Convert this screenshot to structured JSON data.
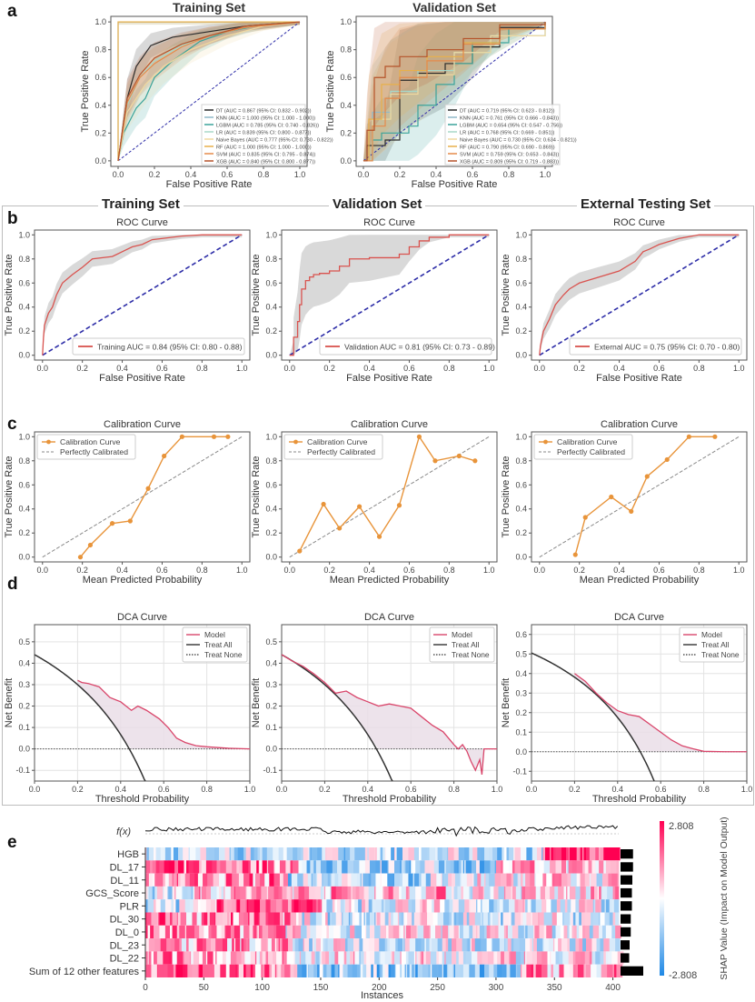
{
  "panel_labels": {
    "a": "a",
    "b": "b",
    "c": "c",
    "d": "d",
    "e": "e"
  },
  "group_titles": [
    "Training Set",
    "Validation Set",
    "External Testing Set"
  ],
  "colors": {
    "DT": "#2b2b2b",
    "KNN": "#8fb9c9",
    "LGBM": "#3aa39a",
    "LR": "#a8d8c8",
    "Naive Bayes": "#f0d9a0",
    "RF": "#e8b04a",
    "SVM": "#e58a4a",
    "XGB": "#b5532a",
    "roc_line": "#d9534f",
    "chance": "#2e2ea8",
    "ci_band": "#cfcfcf",
    "calib": "#e8943a",
    "perfect": "#8a8a8a",
    "dca_model": "#d9466b",
    "dca_fill": "#e9dce6",
    "treat_all": "#333333",
    "shap_pos": "#ff0052",
    "shap_neg": "#1e88e5"
  },
  "chart_data": [
    {
      "id": "a-train",
      "type": "line",
      "title": "Training Set",
      "xlabel": "False Positive Rate",
      "ylabel": "True Positive Rate",
      "xlim": [
        0,
        1
      ],
      "ylim": [
        0,
        1
      ],
      "xticks": [
        "0.0",
        "0.2",
        "0.4",
        "0.6",
        "0.8",
        "1.0"
      ],
      "yticks": [
        "0.0",
        "0.2",
        "0.4",
        "0.6",
        "0.8",
        "1.0"
      ],
      "legend_position": "lower-right",
      "series": [
        {
          "name": "DT",
          "label": "DT (AUC = 0.867 (95% CI: 0.832 - 0.902))",
          "x": [
            0,
            0.05,
            0.1,
            0.18,
            0.3,
            0.5,
            0.7,
            1
          ],
          "y": [
            0,
            0.45,
            0.68,
            0.83,
            0.89,
            0.93,
            0.97,
            1
          ]
        },
        {
          "name": "KNN",
          "label": "KNN (AUC = 1.000 (95% CI: 1.000 - 1.000))",
          "x": [
            0,
            0,
            1
          ],
          "y": [
            0,
            1,
            1
          ]
        },
        {
          "name": "LGBM",
          "label": "LGBM (AUC = 0.785 (95% CI: 0.740 - 0.826))",
          "x": [
            0,
            0.03,
            0.1,
            0.15,
            0.2,
            0.3,
            0.45,
            0.6,
            0.8,
            1
          ],
          "y": [
            0,
            0.2,
            0.38,
            0.45,
            0.6,
            0.72,
            0.86,
            0.93,
            0.98,
            1
          ]
        },
        {
          "name": "LR",
          "label": "LR (AUC = 0.839 (95% CI: 0.800 - 0.877))",
          "x": [
            0,
            0.05,
            0.12,
            0.2,
            0.35,
            0.5,
            0.7,
            1
          ],
          "y": [
            0,
            0.4,
            0.6,
            0.72,
            0.83,
            0.9,
            0.96,
            1
          ]
        },
        {
          "name": "Naive Bayes",
          "label": "Naive Bayes (AUC = 0.777 (95% CI: 0.730 - 0.822))",
          "x": [
            0,
            0.05,
            0.15,
            0.25,
            0.4,
            0.6,
            0.8,
            1
          ],
          "y": [
            0,
            0.35,
            0.55,
            0.68,
            0.8,
            0.9,
            0.97,
            1
          ]
        },
        {
          "name": "RF",
          "label": "RF (AUC = 1.000 (95% CI: 1.000 - 1.000))",
          "x": [
            0,
            0,
            1
          ],
          "y": [
            0,
            1,
            1
          ]
        },
        {
          "name": "SVM",
          "label": "SVM (AUC = 0.835 (95% CI: 0.795 - 0.874))",
          "x": [
            0,
            0.05,
            0.12,
            0.2,
            0.35,
            0.5,
            0.7,
            1
          ],
          "y": [
            0,
            0.42,
            0.6,
            0.7,
            0.82,
            0.9,
            0.96,
            1
          ]
        },
        {
          "name": "XGB",
          "label": "XGB (AUC = 0.840 (95% CI: 0.800 - 0.877))",
          "x": [
            0,
            0.05,
            0.12,
            0.2,
            0.35,
            0.5,
            0.7,
            1
          ],
          "y": [
            0,
            0.45,
            0.62,
            0.74,
            0.84,
            0.9,
            0.97,
            1
          ]
        }
      ]
    },
    {
      "id": "a-val",
      "type": "line",
      "title": "Validation Set",
      "xlabel": "False Positive Rate",
      "ylabel": "True Positive Rate",
      "xlim": [
        0,
        1
      ],
      "ylim": [
        0,
        1
      ],
      "xticks": [
        "0.0",
        "0.2",
        "0.4",
        "0.6",
        "0.8",
        "1.0"
      ],
      "yticks": [
        "0.0",
        "0.2",
        "0.4",
        "0.6",
        "0.8",
        "1.0"
      ],
      "legend_position": "lower-right",
      "series": [
        {
          "name": "DT",
          "label": "DT (AUC = 0.719 (95% CI: 0.623 - 0.812))",
          "x": [
            0,
            0.02,
            0.12,
            0.2,
            0.3,
            0.45,
            0.6,
            0.75,
            1
          ],
          "y": [
            0,
            0.11,
            0.15,
            0.58,
            0.63,
            0.7,
            0.82,
            0.96,
            1
          ]
        },
        {
          "name": "KNN",
          "label": "KNN (AUC = 0.761 (95% CI: 0.666 - 0.843))",
          "x": [
            0,
            0.05,
            0.15,
            0.3,
            0.5,
            0.7,
            1
          ],
          "y": [
            0,
            0.35,
            0.5,
            0.65,
            0.78,
            0.9,
            1
          ]
        },
        {
          "name": "LGBM",
          "label": "LGBM (AUC = 0.654 (95% CI: 0.547 - 0.756))",
          "x": [
            0,
            0.05,
            0.1,
            0.25,
            0.3,
            0.4,
            0.5,
            0.6,
            0.8,
            1
          ],
          "y": [
            0,
            0.15,
            0.2,
            0.25,
            0.4,
            0.55,
            0.7,
            0.85,
            0.95,
            1
          ]
        },
        {
          "name": "LR",
          "label": "LR (AUC = 0.768 (95% CI: 0.669 - 0.851))",
          "x": [
            0,
            0.05,
            0.15,
            0.3,
            0.5,
            0.7,
            1
          ],
          "y": [
            0,
            0.3,
            0.5,
            0.65,
            0.78,
            0.9,
            1
          ]
        },
        {
          "name": "Naive Bayes",
          "label": "Naive Bayes (AUC = 0.730 (95% CI: 0.634 - 0.821))",
          "x": [
            0,
            0.05,
            0.15,
            0.3,
            0.5,
            0.7,
            1
          ],
          "y": [
            0,
            0.3,
            0.48,
            0.62,
            0.78,
            0.9,
            1
          ]
        },
        {
          "name": "RF",
          "label": "RF (AUC = 0.790 (95% CI: 0.690 - 0.869))",
          "x": [
            0,
            0.03,
            0.1,
            0.2,
            0.35,
            0.55,
            0.75,
            1
          ],
          "y": [
            0,
            0.3,
            0.55,
            0.65,
            0.75,
            0.85,
            0.95,
            1
          ]
        },
        {
          "name": "SVM",
          "label": "SVM (AUC = 0.759 (95% CI: 0.653 - 0.843))",
          "x": [
            0,
            0.05,
            0.12,
            0.2,
            0.35,
            0.55,
            0.75,
            1
          ],
          "y": [
            0,
            0.25,
            0.45,
            0.6,
            0.72,
            0.84,
            0.95,
            1
          ]
        },
        {
          "name": "XGB",
          "label": "XGB (AUC = 0.809 (95% CI: 0.719 - 0.883))",
          "x": [
            0,
            0.02,
            0.06,
            0.12,
            0.2,
            0.35,
            0.55,
            0.75,
            1
          ],
          "y": [
            0,
            0.22,
            0.6,
            0.68,
            0.75,
            0.8,
            0.88,
            0.98,
            1
          ]
        }
      ]
    },
    {
      "id": "b-train",
      "type": "line",
      "title": "ROC Curve",
      "xlabel": "False Positive Rate",
      "ylabel": "True Positive Rate",
      "xlim": [
        0,
        1
      ],
      "ylim": [
        0,
        1
      ],
      "xticks": [
        "0.0",
        "0.2",
        "0.4",
        "0.6",
        "0.8",
        "1.0"
      ],
      "yticks": [
        "0.0",
        "0.2",
        "0.4",
        "0.6",
        "0.8",
        "1.0"
      ],
      "legend": "Training AUC = 0.84 (95% CI: 0.80 - 0.88)",
      "legend_position": "lower-right",
      "x": [
        0,
        0.005,
        0.01,
        0.03,
        0.05,
        0.07,
        0.1,
        0.15,
        0.2,
        0.25,
        0.35,
        0.4,
        0.45,
        0.5,
        0.55,
        0.7,
        0.8,
        1
      ],
      "y": [
        0,
        0.15,
        0.25,
        0.35,
        0.4,
        0.5,
        0.6,
        0.67,
        0.73,
        0.8,
        0.82,
        0.86,
        0.9,
        0.92,
        0.96,
        0.99,
        1,
        1
      ]
    },
    {
      "id": "b-val",
      "type": "line",
      "title": "ROC Curve",
      "xlabel": "False Positive Rate",
      "ylabel": "True Positive Rate",
      "xlim": [
        0,
        1
      ],
      "ylim": [
        0,
        1
      ],
      "xticks": [
        "0.0",
        "0.2",
        "0.4",
        "0.6",
        "0.8",
        "1.0"
      ],
      "yticks": [
        "0.0",
        "0.2",
        "0.4",
        "0.6",
        "0.8",
        "1.0"
      ],
      "legend": "Validation AUC = 0.81 (95% CI: 0.73 - 0.89)",
      "legend_position": "lower-right",
      "x": [
        0,
        0.02,
        0.02,
        0.04,
        0.05,
        0.06,
        0.08,
        0.1,
        0.12,
        0.15,
        0.2,
        0.25,
        0.3,
        0.4,
        0.55,
        0.6,
        0.65,
        0.7,
        0.8,
        1
      ],
      "y": [
        0,
        0.05,
        0.15,
        0.28,
        0.42,
        0.55,
        0.62,
        0.65,
        0.67,
        0.68,
        0.7,
        0.74,
        0.8,
        0.81,
        0.84,
        0.9,
        0.95,
        0.98,
        1,
        1
      ]
    },
    {
      "id": "b-ext",
      "type": "line",
      "title": "ROC Curve",
      "xlabel": "False Positive Rate",
      "ylabel": "True Positive Rate",
      "xlim": [
        0,
        1
      ],
      "ylim": [
        0,
        1
      ],
      "xticks": [
        "0.0",
        "0.2",
        "0.4",
        "0.6",
        "0.8",
        "1.0"
      ],
      "yticks": [
        "0.0",
        "0.2",
        "0.4",
        "0.6",
        "0.8",
        "1.0"
      ],
      "legend": "External AUC = 0.75 (95% CI: 0.70 - 0.80)",
      "legend_position": "lower-right",
      "x": [
        0,
        0.005,
        0.02,
        0.05,
        0.08,
        0.12,
        0.15,
        0.2,
        0.3,
        0.4,
        0.48,
        0.52,
        0.55,
        0.6,
        0.7,
        0.8,
        1
      ],
      "y": [
        0,
        0.08,
        0.2,
        0.3,
        0.42,
        0.5,
        0.55,
        0.6,
        0.65,
        0.7,
        0.78,
        0.86,
        0.88,
        0.92,
        0.97,
        1,
        1
      ]
    },
    {
      "id": "c-train",
      "type": "line",
      "title": "Calibration Curve",
      "xlabel": "Mean Predicted Probability",
      "ylabel": "True Positive Rate",
      "xlim": [
        0,
        1
      ],
      "ylim": [
        0,
        1
      ],
      "xticks": [
        "0.0",
        "0.2",
        "0.4",
        "0.6",
        "0.8",
        "1.0"
      ],
      "yticks": [
        "0.0",
        "0.2",
        "0.4",
        "0.6",
        "0.8",
        "1.0"
      ],
      "legend": [
        "Calibration Curve",
        "Perfectly Calibrated"
      ],
      "legend_position": "upper-left",
      "x": [
        0.19,
        0.24,
        0.35,
        0.44,
        0.53,
        0.61,
        0.7,
        0.86,
        0.93
      ],
      "y": [
        0.0,
        0.1,
        0.28,
        0.3,
        0.57,
        0.84,
        1.0,
        1.0,
        1.0
      ]
    },
    {
      "id": "c-val",
      "type": "line",
      "title": "Calibration Curve",
      "xlabel": "Mean Predicted Probability",
      "ylabel": "True Positive Rate",
      "xlim": [
        0,
        1
      ],
      "ylim": [
        0,
        1
      ],
      "xticks": [
        "0.0",
        "0.2",
        "0.4",
        "0.6",
        "0.8",
        "1.0"
      ],
      "yticks": [
        "0.0",
        "0.2",
        "0.4",
        "0.6",
        "0.8",
        "1.0"
      ],
      "legend": [
        "Calibration Curve",
        "Perfectly Calibrated"
      ],
      "legend_position": "upper-left",
      "x": [
        0.05,
        0.17,
        0.25,
        0.35,
        0.45,
        0.55,
        0.65,
        0.73,
        0.85,
        0.93
      ],
      "y": [
        0.05,
        0.44,
        0.24,
        0.42,
        0.17,
        0.43,
        1.0,
        0.8,
        0.84,
        0.8
      ]
    },
    {
      "id": "c-ext",
      "type": "line",
      "title": "Calibration Curve",
      "xlabel": "Mean Predicted Probability",
      "ylabel": "True Positive Rate",
      "xlim": [
        0,
        1
      ],
      "ylim": [
        0,
        1
      ],
      "xticks": [
        "0.0",
        "0.2",
        "0.4",
        "0.6",
        "0.8",
        "1.0"
      ],
      "yticks": [
        "0.0",
        "0.2",
        "0.4",
        "0.6",
        "0.8",
        "1.0"
      ],
      "legend": [
        "Calibration Curve",
        "Perfectly Calibrated"
      ],
      "legend_position": "upper-left",
      "x": [
        0.18,
        0.23,
        0.36,
        0.46,
        0.54,
        0.64,
        0.75,
        0.88
      ],
      "y": [
        0.02,
        0.33,
        0.5,
        0.38,
        0.67,
        0.81,
        1.0,
        1.0
      ]
    },
    {
      "id": "d-train",
      "type": "line",
      "title": "DCA Curve",
      "xlabel": "Threshold Probability",
      "ylabel": "Net Benefit",
      "xlim": [
        0,
        1
      ],
      "ylim": [
        -0.15,
        0.58
      ],
      "xticks": [
        "0.0",
        "0.2",
        "0.4",
        "0.6",
        "0.8",
        "1.0"
      ],
      "yticks": [
        "-0.1",
        "0.0",
        "0.1",
        "0.2",
        "0.3",
        "0.4",
        "0.5"
      ],
      "legend": [
        "Model",
        "Treat All",
        "Treat None"
      ],
      "legend_position": "upper-right",
      "prevalence": 0.44,
      "model_x": [
        0.2,
        0.22,
        0.25,
        0.3,
        0.35,
        0.4,
        0.45,
        0.48,
        0.52,
        0.55,
        0.58,
        0.62,
        0.66,
        0.7,
        0.75,
        0.8,
        0.9,
        1.0
      ],
      "model_y": [
        0.32,
        0.31,
        0.305,
        0.29,
        0.24,
        0.22,
        0.18,
        0.2,
        0.18,
        0.16,
        0.14,
        0.1,
        0.05,
        0.03,
        0.015,
        0.01,
        0.003,
        0
      ]
    },
    {
      "id": "d-val",
      "type": "line",
      "title": "DCA Curve",
      "xlabel": "Threshold Probability",
      "ylabel": "Net Benefit",
      "xlim": [
        0,
        1
      ],
      "ylim": [
        -0.15,
        0.58
      ],
      "xticks": [
        "0.0",
        "0.2",
        "0.4",
        "0.6",
        "0.8",
        "1.0"
      ],
      "yticks": [
        "-0.1",
        "0.0",
        "0.1",
        "0.2",
        "0.3",
        "0.4",
        "0.5"
      ],
      "legend": [
        "Model",
        "Treat All",
        "Treat None"
      ],
      "legend_position": "upper-right",
      "prevalence": 0.44,
      "model_x": [
        0.0,
        0.05,
        0.1,
        0.15,
        0.2,
        0.25,
        0.3,
        0.35,
        0.4,
        0.45,
        0.5,
        0.55,
        0.6,
        0.65,
        0.7,
        0.75,
        0.8,
        0.82,
        0.84,
        0.86,
        0.88,
        0.9,
        0.92,
        0.93,
        0.94,
        1.0
      ],
      "model_y": [
        0.44,
        0.41,
        0.385,
        0.35,
        0.31,
        0.26,
        0.27,
        0.24,
        0.22,
        0.2,
        0.21,
        0.2,
        0.19,
        0.15,
        0.11,
        0.08,
        0.02,
        0.0,
        0.02,
        -0.01,
        -0.06,
        -0.1,
        -0.05,
        -0.12,
        0.0,
        0.0
      ]
    },
    {
      "id": "d-ext",
      "type": "line",
      "title": "DCA Curve",
      "xlabel": "Threshold Probability",
      "ylabel": "Net Benefit",
      "xlim": [
        0,
        1
      ],
      "ylim": [
        -0.15,
        0.65
      ],
      "xticks": [
        "0.0",
        "0.2",
        "0.4",
        "0.6",
        "0.8",
        "1.0"
      ],
      "yticks": [
        "-0.1",
        "0.0",
        "0.1",
        "0.2",
        "0.3",
        "0.4",
        "0.5",
        "0.6"
      ],
      "legend": [
        "Model",
        "Treat All",
        "Treat None"
      ],
      "legend_position": "upper-right",
      "prevalence": 0.505,
      "model_x": [
        0.2,
        0.25,
        0.3,
        0.35,
        0.4,
        0.45,
        0.5,
        0.55,
        0.6,
        0.65,
        0.7,
        0.75,
        0.8,
        0.9,
        1.0
      ],
      "model_y": [
        0.4,
        0.36,
        0.3,
        0.25,
        0.21,
        0.19,
        0.18,
        0.14,
        0.1,
        0.06,
        0.03,
        0.015,
        0.002,
        0.0,
        0.0
      ]
    },
    {
      "id": "e-shap",
      "type": "heatmap",
      "xlabel": "Instances",
      "fx_label": "f(x)",
      "xticks": [
        "0",
        "50",
        "100",
        "150",
        "200",
        "250",
        "300",
        "350",
        "400"
      ],
      "n_instances": 405,
      "features": [
        "HGB",
        "DL_17",
        "DL_11",
        "GCS_Score",
        "PLR",
        "DL_30",
        "DL_0",
        "DL_23",
        "DL_22",
        "Sum of 12 other features"
      ],
      "importance": [
        0.55,
        0.55,
        0.52,
        0.5,
        0.5,
        0.45,
        0.45,
        0.4,
        0.38,
        1.0
      ],
      "colorbar": {
        "max": "2.808",
        "min": "-2.808",
        "label": "SHAP Value (Impact on Model Output)"
      }
    }
  ]
}
